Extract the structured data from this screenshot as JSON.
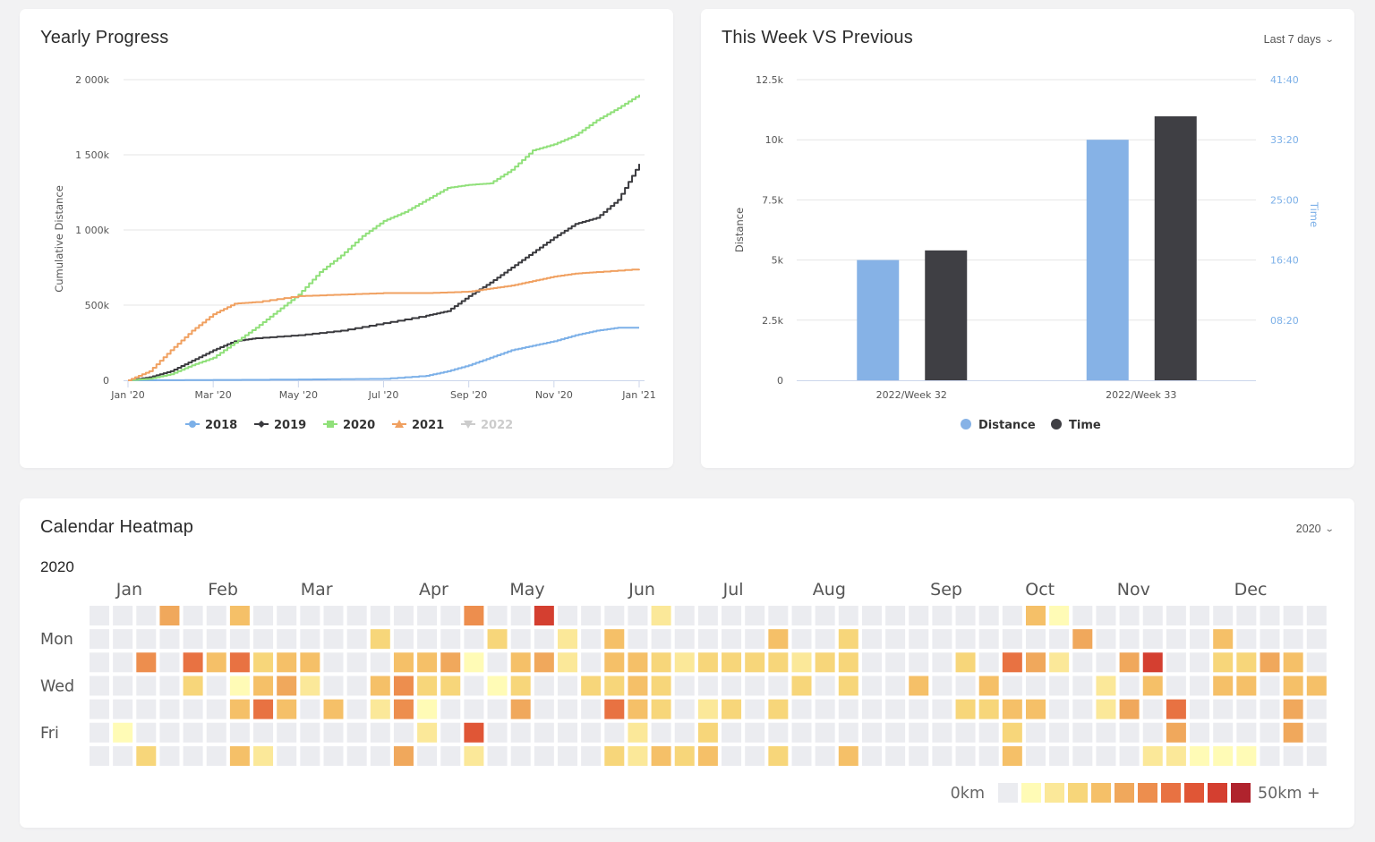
{
  "yearly_progress": {
    "title": "Yearly Progress",
    "chart_data": {
      "type": "line",
      "title": "Yearly Progress",
      "xlabel": "",
      "ylabel": "Cumulative Distance",
      "x_unit": "months since Jan '20",
      "xlim": [
        0,
        12
      ],
      "ylim": [
        0,
        2000
      ],
      "y_ticks": [
        0,
        500,
        1000,
        1500,
        2000
      ],
      "y_tick_labels": [
        "0",
        "500k",
        "1 000k",
        "1 500k",
        "2 000k"
      ],
      "x_ticks": [
        0,
        2,
        4,
        6,
        8,
        10,
        12
      ],
      "x_tick_labels": [
        "Jan '20",
        "Mar '20",
        "May '20",
        "Jul '20",
        "Sep '20",
        "Nov '20",
        "Jan '21"
      ],
      "grid": true,
      "legend_position": "bottom",
      "series": [
        {
          "name": "2018",
          "color": "#7cb0e8",
          "marker": "circle",
          "visible": true,
          "x": [
            0,
            4,
            6,
            7,
            7.5,
            8,
            8.5,
            9,
            9.5,
            10,
            10.5,
            11,
            11.5,
            12
          ],
          "y": [
            0,
            5,
            10,
            30,
            60,
            100,
            150,
            200,
            230,
            260,
            300,
            330,
            350,
            350
          ]
        },
        {
          "name": "2019",
          "color": "#3a3a3e",
          "marker": "diamond",
          "visible": true,
          "x": [
            0,
            0.5,
            1,
            1.5,
            2,
            2.5,
            3,
            4,
            5,
            6,
            7,
            7.5,
            8,
            8.5,
            9,
            9.5,
            10,
            10.5,
            11,
            11.5,
            12
          ],
          "y": [
            0,
            20,
            60,
            130,
            200,
            260,
            280,
            300,
            330,
            380,
            430,
            460,
            560,
            650,
            750,
            850,
            950,
            1040,
            1080,
            1200,
            1440
          ]
        },
        {
          "name": "2020",
          "color": "#90e07a",
          "marker": "square",
          "visible": true,
          "x": [
            0,
            0.5,
            1,
            1.5,
            2,
            2.5,
            3,
            3.5,
            4,
            4.5,
            5,
            5.5,
            6,
            6.5,
            7,
            7.5,
            8,
            8.5,
            9,
            9.5,
            10,
            10.5,
            11,
            11.5,
            12
          ],
          "y": [
            0,
            10,
            40,
            100,
            150,
            250,
            350,
            460,
            570,
            720,
            830,
            960,
            1060,
            1120,
            1200,
            1280,
            1300,
            1310,
            1400,
            1530,
            1570,
            1630,
            1730,
            1810,
            1900
          ]
        },
        {
          "name": "2021",
          "color": "#f0a060",
          "marker": "triangle",
          "visible": true,
          "x": [
            0,
            0.5,
            1,
            1.5,
            2,
            2.5,
            3,
            4,
            5,
            6,
            7,
            8,
            8.5,
            9,
            9.5,
            10,
            10.5,
            11,
            12
          ],
          "y": [
            0,
            60,
            200,
            330,
            440,
            510,
            520,
            560,
            570,
            580,
            580,
            590,
            610,
            630,
            660,
            690,
            710,
            720,
            740
          ]
        },
        {
          "name": "2022",
          "color": "#cccccc",
          "marker": "triangle-down",
          "visible": false,
          "x": [],
          "y": []
        }
      ]
    }
  },
  "week_compare": {
    "title": "This Week VS Previous",
    "dropdown_label": "Last 7 days",
    "chart_data": {
      "type": "bar",
      "title": "This Week VS Previous",
      "categories": [
        "2022/Week 32",
        "2022/Week 33"
      ],
      "ylabel": "Distance",
      "y2label": "Time",
      "ylim": [
        0,
        12500
      ],
      "y_ticks": [
        0,
        2500,
        5000,
        7500,
        10000,
        12500
      ],
      "y_tick_labels": [
        "0",
        "2.5k",
        "5k",
        "7.5k",
        "10k",
        "12.5k"
      ],
      "y2lim_seconds": [
        0,
        2500
      ],
      "y2_ticks_seconds": [
        500,
        1000,
        1500,
        2000,
        2500
      ],
      "y2_tick_labels": [
        "08:20",
        "16:40",
        "25:00",
        "33:20",
        "41:40"
      ],
      "grid": true,
      "legend_position": "bottom",
      "series": [
        {
          "name": "Distance",
          "color": "#86b2e6",
          "axis": "left",
          "values": [
            5000,
            10000
          ]
        },
        {
          "name": "Time",
          "color": "#3f3f44",
          "axis": "right",
          "values_seconds": [
            1080,
            2195
          ]
        }
      ]
    }
  },
  "heatmap": {
    "title": "Calendar Heatmap",
    "dropdown_label": "2020",
    "year_label": "2020",
    "chart_data": {
      "type": "heatmap",
      "title": "Calendar Heatmap 2020",
      "row_labels": [
        "",
        "Mon",
        "",
        "Wed",
        "",
        "Fri",
        ""
      ],
      "month_labels": [
        {
          "label": "Jan",
          "week": 1.7
        },
        {
          "label": "Feb",
          "week": 5.7
        },
        {
          "label": "Mar",
          "week": 9.7
        },
        {
          "label": "Apr",
          "week": 14.7
        },
        {
          "label": "May",
          "week": 18.7
        },
        {
          "label": "Jun",
          "week": 23.6
        },
        {
          "label": "Jul",
          "week": 27.5
        },
        {
          "label": "Aug",
          "week": 31.6
        },
        {
          "label": "Sep",
          "week": 36.6
        },
        {
          "label": "Oct",
          "week": 40.6
        },
        {
          "label": "Nov",
          "week": 44.6
        },
        {
          "label": "Dec",
          "week": 49.6
        }
      ],
      "scale_min_label": "0km",
      "scale_max_label": "50km +",
      "scale_colors": [
        "#ebecf0",
        "#fffbb6",
        "#fbe899",
        "#f7d67a",
        "#f5c068",
        "#f0a85c",
        "#ed8e4e",
        "#e87242",
        "#e05636",
        "#d43f30",
        "#b0232d"
      ],
      "levels_by_row": [
        [
          0,
          0,
          0,
          5,
          0,
          0,
          4,
          0,
          0,
          0,
          0,
          0,
          0,
          0,
          0,
          0,
          6,
          0,
          0,
          9,
          0,
          0,
          0,
          0,
          2,
          0,
          0,
          0,
          0,
          0,
          0,
          0,
          0,
          0,
          0,
          0,
          0,
          0,
          0,
          0,
          4,
          1,
          0,
          0,
          0,
          0,
          0,
          0,
          0,
          0,
          0,
          0,
          0
        ],
        [
          0,
          0,
          0,
          0,
          0,
          0,
          0,
          0,
          0,
          0,
          0,
          0,
          3,
          0,
          0,
          0,
          0,
          3,
          0,
          0,
          2,
          0,
          4,
          0,
          0,
          0,
          0,
          0,
          0,
          4,
          0,
          0,
          3,
          0,
          0,
          0,
          0,
          0,
          0,
          0,
          0,
          0,
          5,
          0,
          0,
          0,
          0,
          0,
          4,
          0,
          0,
          0,
          0
        ],
        [
          0,
          0,
          6,
          0,
          7,
          4,
          7,
          3,
          4,
          4,
          0,
          0,
          0,
          4,
          4,
          5,
          1,
          0,
          4,
          5,
          2,
          0,
          4,
          4,
          3,
          2,
          3,
          3,
          3,
          3,
          2,
          3,
          3,
          0,
          0,
          0,
          0,
          3,
          0,
          7,
          5,
          2,
          0,
          0,
          5,
          9,
          0,
          0,
          3,
          3,
          5,
          4,
          0
        ],
        [
          0,
          0,
          0,
          0,
          3,
          0,
          1,
          4,
          5,
          2,
          0,
          0,
          4,
          6,
          3,
          3,
          0,
          1,
          3,
          0,
          0,
          3,
          3,
          4,
          3,
          0,
          0,
          0,
          0,
          0,
          3,
          0,
          3,
          0,
          0,
          4,
          0,
          0,
          4,
          0,
          0,
          0,
          0,
          2,
          0,
          4,
          0,
          0,
          4,
          4,
          0,
          4,
          4
        ],
        [
          0,
          0,
          0,
          0,
          0,
          0,
          4,
          7,
          4,
          0,
          4,
          0,
          2,
          6,
          1,
          0,
          0,
          0,
          5,
          0,
          0,
          0,
          7,
          4,
          3,
          0,
          2,
          3,
          0,
          3,
          0,
          0,
          0,
          0,
          0,
          0,
          0,
          3,
          3,
          4,
          4,
          0,
          0,
          2,
          5,
          0,
          7,
          0,
          0,
          0,
          0,
          5,
          0
        ],
        [
          0,
          1,
          0,
          0,
          0,
          0,
          0,
          0,
          0,
          0,
          0,
          0,
          0,
          0,
          2,
          0,
          8,
          0,
          0,
          0,
          0,
          0,
          0,
          2,
          0,
          0,
          3,
          0,
          0,
          0,
          0,
          0,
          0,
          0,
          0,
          0,
          0,
          0,
          0,
          3,
          0,
          0,
          0,
          0,
          0,
          0,
          5,
          0,
          0,
          0,
          0,
          5,
          0
        ],
        [
          0,
          0,
          3,
          0,
          0,
          0,
          4,
          2,
          0,
          0,
          0,
          0,
          0,
          5,
          0,
          0,
          2,
          0,
          0,
          0,
          0,
          0,
          3,
          2,
          4,
          3,
          4,
          0,
          0,
          3,
          0,
          0,
          4,
          0,
          0,
          0,
          0,
          0,
          0,
          4,
          0,
          0,
          0,
          0,
          0,
          2,
          2,
          1,
          1,
          1,
          0,
          0,
          0
        ]
      ]
    }
  }
}
